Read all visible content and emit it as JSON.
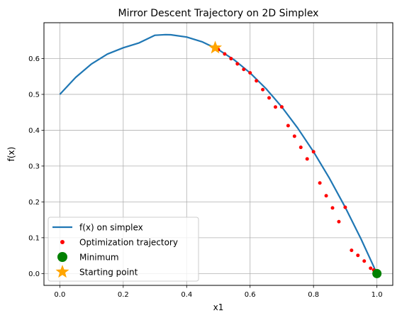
{
  "chart_data": {
    "type": "line",
    "title": "Mirror Descent Trajectory on 2D Simplex",
    "xlabel": "x1",
    "ylabel": "f(x)",
    "xlim": [
      -0.05,
      1.05
    ],
    "ylim": [
      -0.033,
      0.7
    ],
    "xticks": [
      0.0,
      0.2,
      0.4,
      0.6,
      0.8,
      1.0
    ],
    "xtick_labels": [
      "0.0",
      "0.2",
      "0.4",
      "0.6",
      "0.8",
      "1.0"
    ],
    "yticks": [
      0.0,
      0.1,
      0.2,
      0.3,
      0.4,
      0.5,
      0.6
    ],
    "ytick_labels": [
      "0.0",
      "0.1",
      "0.2",
      "0.3",
      "0.4",
      "0.5",
      "0.6"
    ],
    "grid": true,
    "legend_position": "lower-left",
    "series": [
      {
        "name": "f(x) on simplex",
        "kind": "line",
        "color": "#1f77b4",
        "x": [
          0.0,
          0.05,
          0.1,
          0.15,
          0.2,
          0.25,
          0.3,
          0.333,
          0.35,
          0.4,
          0.45,
          0.5,
          0.55,
          0.6,
          0.65,
          0.7,
          0.75,
          0.8,
          0.85,
          0.9,
          0.95,
          1.0
        ],
        "y": [
          0.5,
          0.5475,
          0.585,
          0.6125,
          0.63,
          0.6437,
          0.665,
          0.6667,
          0.6663,
          0.66,
          0.6463,
          0.625,
          0.5962,
          0.56,
          0.5162,
          0.465,
          0.4062,
          0.34,
          0.2662,
          0.185,
          0.0963,
          0.0
        ]
      },
      {
        "name": "Optimization trajectory",
        "kind": "scatter",
        "color": "#ff0000",
        "x": [
          0.49,
          0.5,
          0.52,
          0.54,
          0.56,
          0.58,
          0.6,
          0.62,
          0.64,
          0.66,
          0.68,
          0.7,
          0.72,
          0.74,
          0.76,
          0.78,
          0.8,
          0.82,
          0.84,
          0.86,
          0.88,
          0.9,
          0.92,
          0.94,
          0.96,
          0.98,
          0.99,
          1.0
        ],
        "y": [
          0.63,
          0.625,
          0.6128,
          0.5998,
          0.5852,
          0.5698,
          0.56,
          0.5378,
          0.5132,
          0.4902,
          0.4648,
          0.465,
          0.4128,
          0.3832,
          0.3522,
          0.3198,
          0.34,
          0.2528,
          0.2172,
          0.1832,
          0.1448,
          0.185,
          0.0648,
          0.0508,
          0.0348,
          0.0148,
          0.0098,
          0.0
        ]
      },
      {
        "name": "Minimum",
        "kind": "point",
        "color": "#008000",
        "x": [
          1.0
        ],
        "y": [
          0.0
        ]
      },
      {
        "name": "Starting point",
        "kind": "star",
        "color": "#ffa500",
        "x": [
          0.49
        ],
        "y": [
          0.63
        ]
      }
    ]
  }
}
